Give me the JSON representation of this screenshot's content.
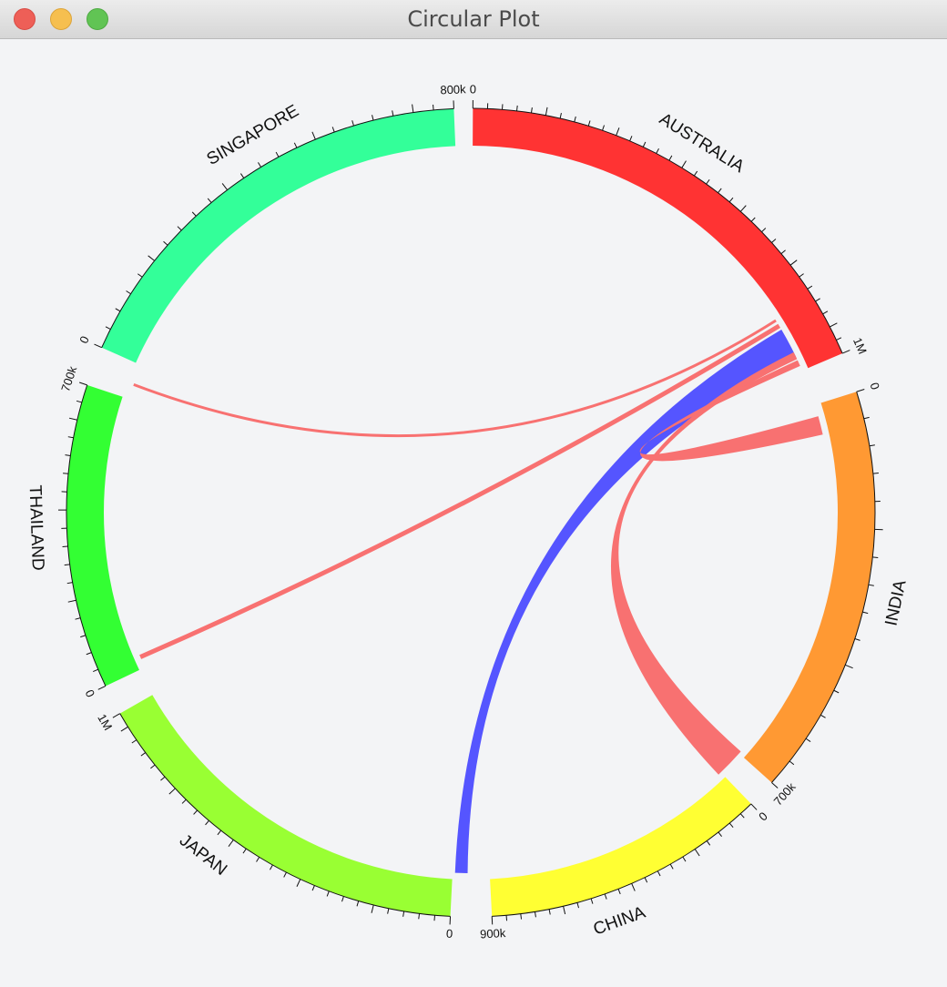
{
  "window": {
    "title": "Circular Plot"
  },
  "chart_data": {
    "type": "chord",
    "title": "Circular Plot",
    "segments": [
      {
        "name": "AUSTRALIA",
        "color": "#ff3333",
        "start_label": "0",
        "end_label": "1M"
      },
      {
        "name": "INDIA",
        "color": "#ff9933",
        "start_label": "0",
        "end_label": "700k"
      },
      {
        "name": "CHINA",
        "color": "#ffff33",
        "start_label": "0",
        "end_label": "900k"
      },
      {
        "name": "JAPAN",
        "color": "#99ff33",
        "start_label": "0",
        "end_label": "1M"
      },
      {
        "name": "THAILAND",
        "color": "#33ff33",
        "start_label": "0",
        "end_label": "700k"
      },
      {
        "name": "SINGAPORE",
        "color": "#33ff99",
        "start_label": "0",
        "end_label": "800k"
      }
    ],
    "links": [
      {
        "source": "AUSTRALIA",
        "target": "SINGAPORE",
        "color": "#f87171"
      },
      {
        "source": "AUSTRALIA",
        "target": "THAILAND",
        "color": "#f87171"
      },
      {
        "source": "AUSTRALIA",
        "target": "JAPAN",
        "color": "#5555ff"
      },
      {
        "source": "AUSTRALIA",
        "target": "CHINA",
        "color": "#f87171"
      },
      {
        "source": "AUSTRALIA",
        "target": "INDIA",
        "color": "#f87171"
      }
    ]
  }
}
